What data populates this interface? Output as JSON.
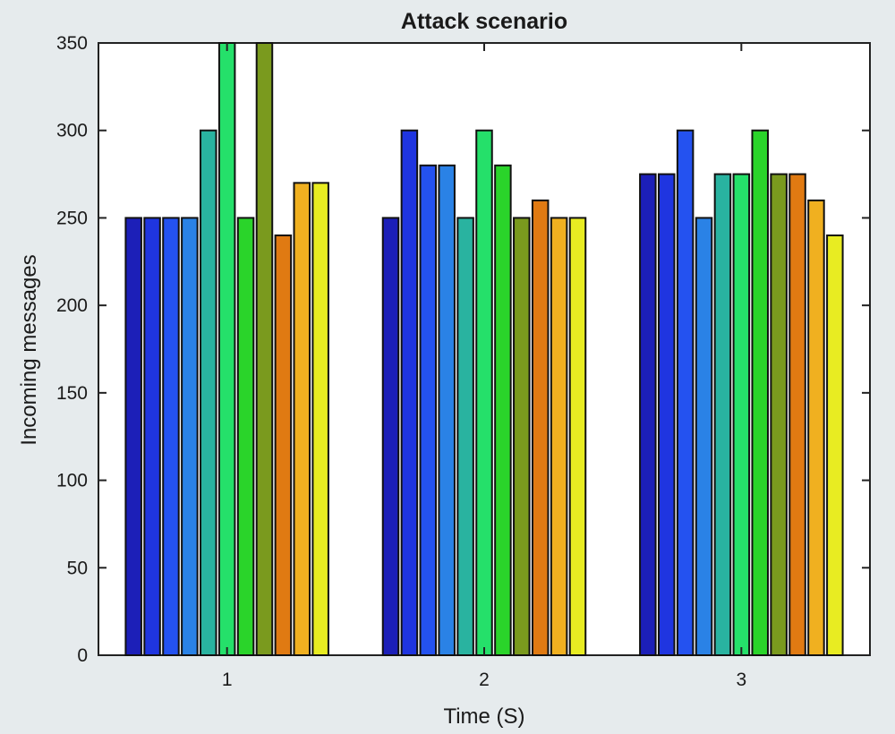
{
  "chart_data": {
    "type": "bar",
    "title": "Attack scenario",
    "xlabel": "Time (S)",
    "ylabel": "Incoming messages",
    "categories": [
      "1",
      "2",
      "3"
    ],
    "ylim": [
      0,
      350
    ],
    "yticks": [
      0,
      50,
      100,
      150,
      200,
      250,
      300,
      350
    ],
    "grid": false,
    "legend": "none",
    "bar_colors": [
      "#1c1fb8",
      "#1f35e0",
      "#2452f0",
      "#2a82e6",
      "#29b3a0",
      "#25e06a",
      "#2ad42a",
      "#7a9a1e",
      "#e07a12",
      "#f0b020",
      "#e8ec22"
    ],
    "series": [
      {
        "values": [
          250,
          250,
          275
        ]
      },
      {
        "values": [
          250,
          300,
          275
        ]
      },
      {
        "values": [
          250,
          280,
          300
        ]
      },
      {
        "values": [
          250,
          280,
          250
        ]
      },
      {
        "values": [
          300,
          250,
          275
        ]
      },
      {
        "values": [
          350,
          300,
          275
        ]
      },
      {
        "values": [
          250,
          280,
          300
        ]
      },
      {
        "values": [
          350,
          250,
          275
        ]
      },
      {
        "values": [
          240,
          260,
          275
        ]
      },
      {
        "values": [
          270,
          250,
          260
        ]
      },
      {
        "values": [
          270,
          250,
          240
        ]
      }
    ]
  }
}
